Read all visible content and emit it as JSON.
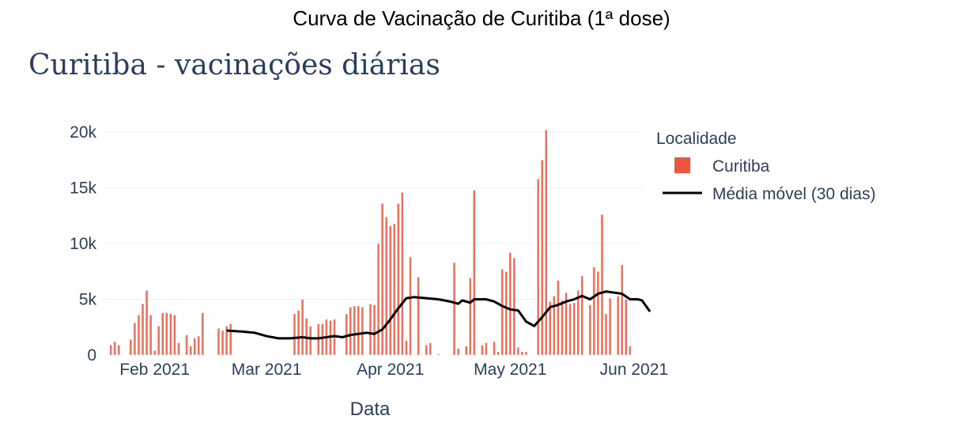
{
  "header": {
    "title": "Curva de Vacinação de Curitiba (1ª dose)"
  },
  "chart_data": {
    "type": "bar",
    "title": "Curitiba - vacinações diárias",
    "xlabel": "Data",
    "ylabel": "",
    "ylim": [
      0,
      21000
    ],
    "x_range": [
      "2021-01-19",
      "2021-06-03"
    ],
    "x_ticks": [
      {
        "date": "2021-02-01",
        "label": "Feb 2021"
      },
      {
        "date": "2021-03-01",
        "label": "Mar 2021"
      },
      {
        "date": "2021-04-01",
        "label": "Apr 2021"
      },
      {
        "date": "2021-05-01",
        "label": "May 2021"
      },
      {
        "date": "2021-06-01",
        "label": "Jun 2021"
      }
    ],
    "y_ticks": [
      {
        "value": 0,
        "label": "0"
      },
      {
        "value": 5000,
        "label": "5k"
      },
      {
        "value": 10000,
        "label": "10k"
      },
      {
        "value": 15000,
        "label": "15k"
      },
      {
        "value": 20000,
        "label": "20k"
      }
    ],
    "grid": true,
    "legend": {
      "title": "Localidade",
      "placement": "right",
      "entries": [
        {
          "name": "Curitiba",
          "kind": "bar",
          "color": "#ef553b"
        },
        {
          "name": "Média móvel (30 dias)",
          "kind": "line",
          "color": "#000000"
        }
      ]
    },
    "series": [
      {
        "name": "Curitiba",
        "kind": "bar",
        "color": "#ef553b",
        "points": [
          [
            "2021-01-21",
            900
          ],
          [
            "2021-01-22",
            1200
          ],
          [
            "2021-01-23",
            900
          ],
          [
            "2021-01-26",
            1400
          ],
          [
            "2021-01-27",
            2900
          ],
          [
            "2021-01-28",
            3600
          ],
          [
            "2021-01-29",
            4600
          ],
          [
            "2021-01-30",
            5800
          ],
          [
            "2021-01-31",
            3600
          ],
          [
            "2021-02-01",
            400
          ],
          [
            "2021-02-02",
            2600
          ],
          [
            "2021-02-03",
            3800
          ],
          [
            "2021-02-04",
            3800
          ],
          [
            "2021-02-05",
            3700
          ],
          [
            "2021-02-06",
            3600
          ],
          [
            "2021-02-07",
            1100
          ],
          [
            "2021-02-09",
            1800
          ],
          [
            "2021-02-10",
            800
          ],
          [
            "2021-02-11",
            1500
          ],
          [
            "2021-02-12",
            1700
          ],
          [
            "2021-02-13",
            3800
          ],
          [
            "2021-02-17",
            2400
          ],
          [
            "2021-02-18",
            2200
          ],
          [
            "2021-02-19",
            2600
          ],
          [
            "2021-02-20",
            2800
          ],
          [
            "2021-03-08",
            3700
          ],
          [
            "2021-03-09",
            4000
          ],
          [
            "2021-03-10",
            5000
          ],
          [
            "2021-03-11",
            3300
          ],
          [
            "2021-03-12",
            2600
          ],
          [
            "2021-03-14",
            2800
          ],
          [
            "2021-03-15",
            2800
          ],
          [
            "2021-03-16",
            3200
          ],
          [
            "2021-03-17",
            3100
          ],
          [
            "2021-03-18",
            3200
          ],
          [
            "2021-03-21",
            3700
          ],
          [
            "2021-03-22",
            4300
          ],
          [
            "2021-03-23",
            4400
          ],
          [
            "2021-03-24",
            4400
          ],
          [
            "2021-03-25",
            4300
          ],
          [
            "2021-03-27",
            4600
          ],
          [
            "2021-03-28",
            4500
          ],
          [
            "2021-03-29",
            10000
          ],
          [
            "2021-03-30",
            13600
          ],
          [
            "2021-03-31",
            12400
          ],
          [
            "2021-04-01",
            11600
          ],
          [
            "2021-04-02",
            11800
          ],
          [
            "2021-04-03",
            13600
          ],
          [
            "2021-04-04",
            14600
          ],
          [
            "2021-04-05",
            1300
          ],
          [
            "2021-04-06",
            8800
          ],
          [
            "2021-04-08",
            7000
          ],
          [
            "2021-04-10",
            900
          ],
          [
            "2021-04-11",
            1100
          ],
          [
            "2021-04-13",
            100
          ],
          [
            "2021-04-17",
            8300
          ],
          [
            "2021-04-18",
            600
          ],
          [
            "2021-04-20",
            800
          ],
          [
            "2021-04-21",
            6900
          ],
          [
            "2021-04-22",
            14800
          ],
          [
            "2021-04-24",
            900
          ],
          [
            "2021-04-25",
            1100
          ],
          [
            "2021-04-27",
            1200
          ],
          [
            "2021-04-28",
            300
          ],
          [
            "2021-04-29",
            7700
          ],
          [
            "2021-04-30",
            7500
          ],
          [
            "2021-05-01",
            9200
          ],
          [
            "2021-05-02",
            8700
          ],
          [
            "2021-05-03",
            700
          ],
          [
            "2021-05-04",
            300
          ],
          [
            "2021-05-05",
            300
          ],
          [
            "2021-05-08",
            15800
          ],
          [
            "2021-05-09",
            17500
          ],
          [
            "2021-05-10",
            20200
          ],
          [
            "2021-05-11",
            4800
          ],
          [
            "2021-05-12",
            5300
          ],
          [
            "2021-05-13",
            6700
          ],
          [
            "2021-05-14",
            4900
          ],
          [
            "2021-05-15",
            5600
          ],
          [
            "2021-05-16",
            4600
          ],
          [
            "2021-05-17",
            4700
          ],
          [
            "2021-05-18",
            5800
          ],
          [
            "2021-05-19",
            7100
          ],
          [
            "2021-05-21",
            4500
          ],
          [
            "2021-05-22",
            7900
          ],
          [
            "2021-05-23",
            7500
          ],
          [
            "2021-05-24",
            12600
          ],
          [
            "2021-05-25",
            3700
          ],
          [
            "2021-05-26",
            5100
          ],
          [
            "2021-05-28",
            5300
          ],
          [
            "2021-05-29",
            8100
          ],
          [
            "2021-05-30",
            5000
          ],
          [
            "2021-05-31",
            800
          ]
        ]
      },
      {
        "name": "Média móvel (30 dias)",
        "kind": "line",
        "color": "#000000",
        "points": [
          [
            "2021-02-19",
            2200
          ],
          [
            "2021-02-23",
            2100
          ],
          [
            "2021-02-26",
            2000
          ],
          [
            "2021-03-01",
            1700
          ],
          [
            "2021-03-04",
            1500
          ],
          [
            "2021-03-07",
            1500
          ],
          [
            "2021-03-10",
            1600
          ],
          [
            "2021-03-12",
            1500
          ],
          [
            "2021-03-14",
            1500
          ],
          [
            "2021-03-16",
            1600
          ],
          [
            "2021-03-18",
            1700
          ],
          [
            "2021-03-20",
            1600
          ],
          [
            "2021-03-22",
            1800
          ],
          [
            "2021-03-24",
            1900
          ],
          [
            "2021-03-26",
            2000
          ],
          [
            "2021-03-28",
            1900
          ],
          [
            "2021-03-30",
            2300
          ],
          [
            "2021-04-01",
            3200
          ],
          [
            "2021-04-03",
            4200
          ],
          [
            "2021-04-05",
            5100
          ],
          [
            "2021-04-07",
            5200
          ],
          [
            "2021-04-10",
            5100
          ],
          [
            "2021-04-13",
            5000
          ],
          [
            "2021-04-16",
            4800
          ],
          [
            "2021-04-18",
            4600
          ],
          [
            "2021-04-19",
            4900
          ],
          [
            "2021-04-21",
            4700
          ],
          [
            "2021-04-22",
            5000
          ],
          [
            "2021-04-25",
            5000
          ],
          [
            "2021-04-27",
            4800
          ],
          [
            "2021-04-29",
            4400
          ],
          [
            "2021-05-01",
            4100
          ],
          [
            "2021-05-03",
            4000
          ],
          [
            "2021-05-05",
            3000
          ],
          [
            "2021-05-07",
            2600
          ],
          [
            "2021-05-09",
            3400
          ],
          [
            "2021-05-11",
            4300
          ],
          [
            "2021-05-13",
            4500
          ],
          [
            "2021-05-15",
            4800
          ],
          [
            "2021-05-17",
            5000
          ],
          [
            "2021-05-19",
            5300
          ],
          [
            "2021-05-21",
            5000
          ],
          [
            "2021-05-23",
            5500
          ],
          [
            "2021-05-25",
            5700
          ],
          [
            "2021-05-27",
            5600
          ],
          [
            "2021-05-29",
            5500
          ],
          [
            "2021-05-31",
            5000
          ],
          [
            "2021-06-02",
            5000
          ],
          [
            "2021-06-03",
            4900
          ],
          [
            "2021-06-05",
            3900
          ]
        ]
      }
    ]
  }
}
